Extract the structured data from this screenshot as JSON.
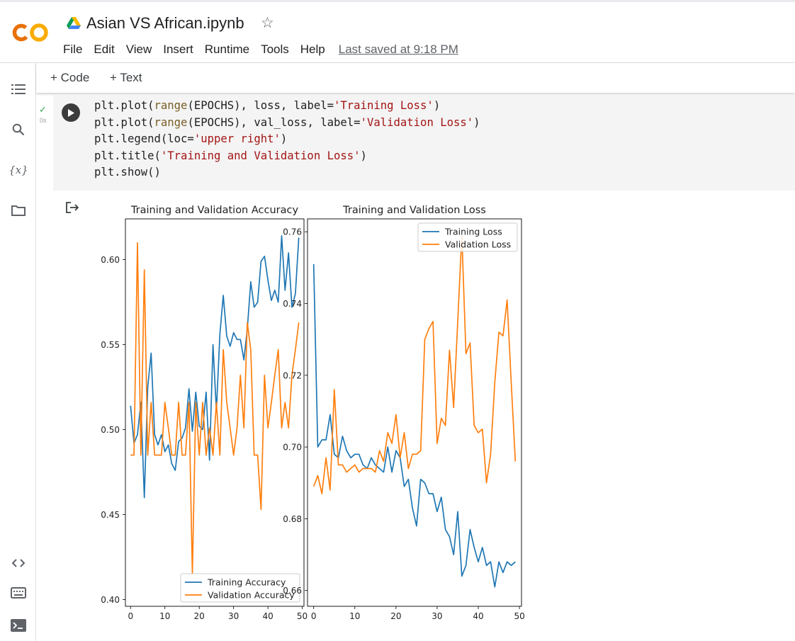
{
  "notebook": {
    "title": "Asian VS African.ipynb",
    "last_saved": "Last saved at 9:18 PM"
  },
  "menu": [
    "File",
    "Edit",
    "View",
    "Insert",
    "Runtime",
    "Tools",
    "Help"
  ],
  "toolbar": {
    "add_code": "+ Code",
    "add_text": "+ Text"
  },
  "cell": {
    "exec_time": "0s",
    "code_lines": [
      [
        {
          "t": "plt.plot("
        },
        {
          "t": "range",
          "c": "bi"
        },
        {
          "t": "(EPOCHS), loss, label="
        },
        {
          "t": "'Training Loss'",
          "c": "str"
        },
        {
          "t": ")"
        }
      ],
      [
        {
          "t": "plt.plot("
        },
        {
          "t": "range",
          "c": "bi"
        },
        {
          "t": "(EPOCHS), val_loss, label="
        },
        {
          "t": "'Validation Loss'",
          "c": "str"
        },
        {
          "t": ")"
        }
      ],
      [
        {
          "t": "plt.legend(loc="
        },
        {
          "t": "'upper right'",
          "c": "str"
        },
        {
          "t": ")"
        }
      ],
      [
        {
          "t": "plt.title("
        },
        {
          "t": "'Training and Validation Loss'",
          "c": "str"
        },
        {
          "t": ")"
        }
      ],
      [
        {
          "t": "plt.show()"
        }
      ]
    ]
  },
  "chart_data": [
    {
      "type": "line",
      "title": "Training and Validation Accuracy",
      "xlabel": "",
      "ylabel": "",
      "xlim": [
        -1.5,
        50.5
      ],
      "ylim": [
        0.396,
        0.624
      ],
      "xticks": [
        0,
        10,
        20,
        30,
        40,
        50
      ],
      "yticks": [
        0.4,
        0.45,
        0.5,
        0.55,
        0.6
      ],
      "ytick_labels": [
        "0.40",
        "0.45",
        "0.50",
        "0.55",
        "0.60"
      ],
      "grid": false,
      "legend": "lower right",
      "x": [
        0,
        1,
        2,
        3,
        4,
        5,
        6,
        7,
        8,
        9,
        10,
        11,
        12,
        13,
        14,
        15,
        16,
        17,
        18,
        19,
        20,
        21,
        22,
        23,
        24,
        25,
        26,
        27,
        28,
        29,
        30,
        31,
        32,
        33,
        34,
        35,
        36,
        37,
        38,
        39,
        40,
        41,
        42,
        43,
        44,
        45,
        46,
        47,
        48,
        49
      ],
      "series": [
        {
          "name": "Training Accuracy",
          "color": "#1f77b4",
          "values": [
            0.514,
            0.492,
            0.497,
            0.516,
            0.46,
            0.525,
            0.545,
            0.497,
            0.491,
            0.497,
            0.487,
            0.491,
            0.48,
            0.476,
            0.493,
            0.495,
            0.501,
            0.524,
            0.499,
            0.522,
            0.502,
            0.5,
            0.522,
            0.482,
            0.55,
            0.511,
            0.556,
            0.579,
            0.555,
            0.549,
            0.557,
            0.553,
            0.553,
            0.541,
            0.559,
            0.587,
            0.572,
            0.575,
            0.599,
            0.602,
            0.588,
            0.576,
            0.582,
            0.575,
            0.614,
            0.582,
            0.604,
            0.572,
            0.58,
            0.613
          ]
        },
        {
          "name": "Validation Accuracy",
          "color": "#ff7f0e",
          "values": [
            0.485,
            0.485,
            0.61,
            0.485,
            0.594,
            0.485,
            0.516,
            0.485,
            0.485,
            0.485,
            0.516,
            0.501,
            0.485,
            0.485,
            0.516,
            0.485,
            0.485,
            0.516,
            0.415,
            0.516,
            0.485,
            0.516,
            0.485,
            0.501,
            0.485,
            0.516,
            0.485,
            0.547,
            0.516,
            0.501,
            0.485,
            0.501,
            0.532,
            0.501,
            0.563,
            0.547,
            0.485,
            0.485,
            0.453,
            0.532,
            0.501,
            0.516,
            0.532,
            0.547,
            0.501,
            0.516,
            0.501,
            0.532,
            0.547,
            0.563
          ]
        }
      ]
    },
    {
      "type": "line",
      "title": "Training and Validation Loss",
      "xlabel": "",
      "ylabel": "",
      "xlim": [
        -1.5,
        50.5
      ],
      "ylim": [
        0.6556,
        0.7636
      ],
      "xticks": [
        0,
        10,
        20,
        30,
        40,
        50
      ],
      "yticks": [
        0.66,
        0.68,
        0.7,
        0.72,
        0.74,
        0.76
      ],
      "ytick_labels": [
        "0.66",
        "0.68",
        "0.70",
        "0.72",
        "0.74",
        "0.76"
      ],
      "grid": false,
      "legend": "upper right",
      "x": [
        0,
        1,
        2,
        3,
        4,
        5,
        6,
        7,
        8,
        9,
        10,
        11,
        12,
        13,
        14,
        15,
        16,
        17,
        18,
        19,
        20,
        21,
        22,
        23,
        24,
        25,
        26,
        27,
        28,
        29,
        30,
        31,
        32,
        33,
        34,
        35,
        36,
        37,
        38,
        39,
        40,
        41,
        42,
        43,
        44,
        45,
        46,
        47,
        48,
        49
      ],
      "series": [
        {
          "name": "Training Loss",
          "color": "#1f77b4",
          "values": [
            0.751,
            0.7,
            0.702,
            0.702,
            0.709,
            0.698,
            0.697,
            0.703,
            0.699,
            0.697,
            0.698,
            0.698,
            0.695,
            0.694,
            0.697,
            0.695,
            0.694,
            0.693,
            0.7,
            0.693,
            0.699,
            0.697,
            0.689,
            0.691,
            0.683,
            0.678,
            0.691,
            0.69,
            0.687,
            0.687,
            0.682,
            0.686,
            0.677,
            0.675,
            0.67,
            0.682,
            0.664,
            0.667,
            0.677,
            0.672,
            0.668,
            0.672,
            0.667,
            0.668,
            0.661,
            0.668,
            0.665,
            0.668,
            0.667,
            0.668
          ]
        },
        {
          "name": "Validation Loss",
          "color": "#ff7f0e",
          "values": [
            0.689,
            0.692,
            0.687,
            0.697,
            0.688,
            0.716,
            0.695,
            0.695,
            0.693,
            0.694,
            0.695,
            0.693,
            0.694,
            0.694,
            0.694,
            0.693,
            0.699,
            0.696,
            0.704,
            0.701,
            0.709,
            0.697,
            0.704,
            0.694,
            0.698,
            0.698,
            0.699,
            0.73,
            0.733,
            0.735,
            0.701,
            0.708,
            0.706,
            0.727,
            0.711,
            0.735,
            0.759,
            0.726,
            0.729,
            0.706,
            0.704,
            0.705,
            0.69,
            0.698,
            0.718,
            0.732,
            0.731,
            0.741,
            0.718,
            0.696
          ]
        }
      ]
    }
  ]
}
